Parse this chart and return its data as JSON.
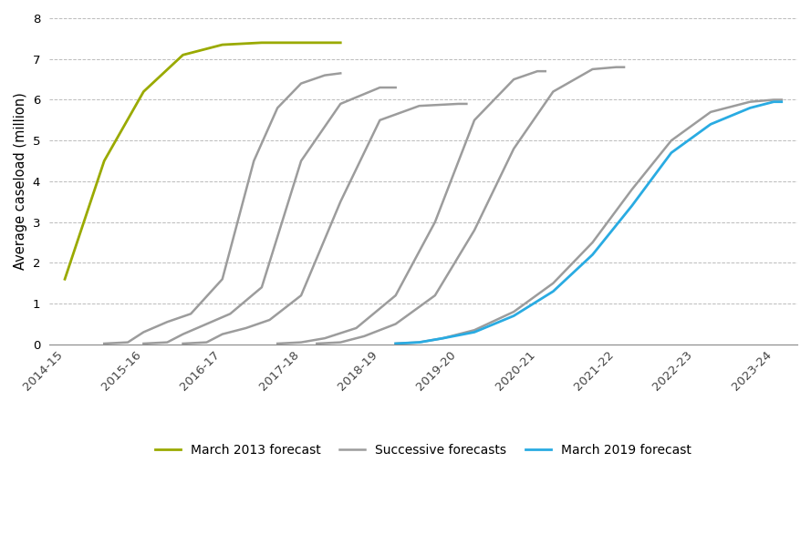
{
  "ylabel": "Average caseload (million)",
  "ylim": [
    0,
    8
  ],
  "yticks": [
    0,
    1,
    2,
    3,
    4,
    5,
    6,
    7,
    8
  ],
  "x_categories": [
    "2014-15",
    "2015-16",
    "2016-17",
    "2017-18",
    "2018-19",
    "2019-20",
    "2020-21",
    "2021-22",
    "2022-23",
    "2023-24"
  ],
  "march2013_color": "#9aaa00",
  "successive_color": "#9c9c9c",
  "march2019_color": "#29abe2",
  "background_color": "#ffffff",
  "grid_color": "#bbbbbb",
  "march2013": {
    "x": [
      0.0,
      0.5,
      1.0,
      1.5,
      2.0,
      2.5,
      3.0,
      3.5
    ],
    "y": [
      1.6,
      4.5,
      6.2,
      7.1,
      7.35,
      7.4,
      7.4,
      7.4
    ]
  },
  "successive": [
    {
      "x": [
        0.5,
        0.8,
        1.0,
        1.3,
        1.6,
        2.0,
        2.4,
        2.7,
        3.0,
        3.3,
        3.5
      ],
      "y": [
        0.02,
        0.05,
        0.3,
        0.55,
        0.75,
        1.6,
        4.5,
        5.8,
        6.4,
        6.6,
        6.65
      ]
    },
    {
      "x": [
        1.0,
        1.3,
        1.5,
        1.8,
        2.1,
        2.5,
        3.0,
        3.5,
        4.0,
        4.2
      ],
      "y": [
        0.02,
        0.05,
        0.25,
        0.5,
        0.75,
        1.4,
        4.5,
        5.9,
        6.3,
        6.3
      ]
    },
    {
      "x": [
        1.5,
        1.8,
        2.0,
        2.3,
        2.6,
        3.0,
        3.5,
        4.0,
        4.5,
        5.0,
        5.1
      ],
      "y": [
        0.02,
        0.05,
        0.25,
        0.4,
        0.6,
        1.2,
        3.5,
        5.5,
        5.85,
        5.9,
        5.9
      ]
    },
    {
      "x": [
        2.7,
        3.0,
        3.3,
        3.7,
        4.2,
        4.7,
        5.2,
        5.7,
        6.0,
        6.1
      ],
      "y": [
        0.02,
        0.05,
        0.15,
        0.4,
        1.2,
        3.0,
        5.5,
        6.5,
        6.7,
        6.7
      ]
    },
    {
      "x": [
        3.2,
        3.5,
        3.8,
        4.2,
        4.7,
        5.2,
        5.7,
        6.2,
        6.7,
        7.0,
        7.1
      ],
      "y": [
        0.02,
        0.05,
        0.2,
        0.5,
        1.2,
        2.8,
        4.8,
        6.2,
        6.75,
        6.8,
        6.8
      ]
    },
    {
      "x": [
        4.2,
        4.5,
        4.8,
        5.2,
        5.7,
        6.2,
        6.7,
        7.2,
        7.7,
        8.2,
        8.7,
        9.0,
        9.1
      ],
      "y": [
        0.02,
        0.05,
        0.15,
        0.35,
        0.8,
        1.5,
        2.5,
        3.8,
        5.0,
        5.7,
        5.95,
        6.0,
        6.0
      ]
    }
  ],
  "march2019": {
    "x": [
      4.2,
      4.5,
      4.8,
      5.2,
      5.7,
      6.2,
      6.7,
      7.2,
      7.7,
      8.2,
      8.7,
      9.0,
      9.1
    ],
    "y": [
      0.02,
      0.05,
      0.15,
      0.3,
      0.7,
      1.3,
      2.2,
      3.4,
      4.7,
      5.4,
      5.8,
      5.95,
      5.95
    ]
  }
}
